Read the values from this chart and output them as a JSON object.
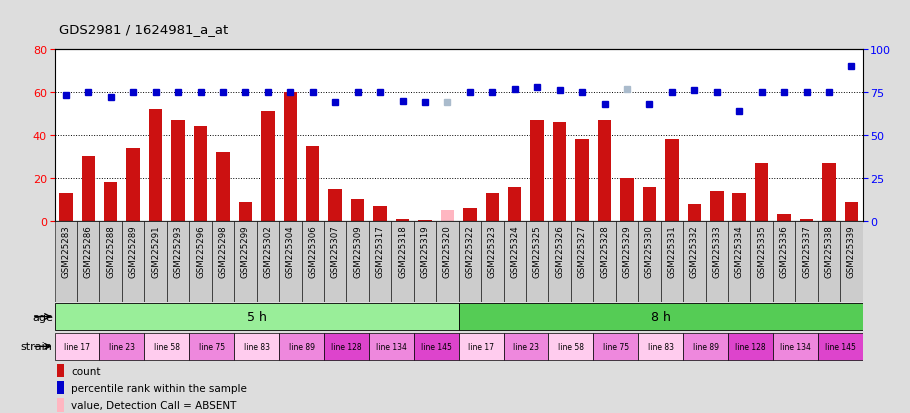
{
  "title": "GDS2981 / 1624981_a_at",
  "categories": [
    "GSM225283",
    "GSM225286",
    "GSM225288",
    "GSM225289",
    "GSM225291",
    "GSM225293",
    "GSM225296",
    "GSM225298",
    "GSM225299",
    "GSM225302",
    "GSM225304",
    "GSM225306",
    "GSM225307",
    "GSM225309",
    "GSM225317",
    "GSM225318",
    "GSM225319",
    "GSM225320",
    "GSM225322",
    "GSM225323",
    "GSM225324",
    "GSM225325",
    "GSM225326",
    "GSM225327",
    "GSM225328",
    "GSM225329",
    "GSM225330",
    "GSM225331",
    "GSM225332",
    "GSM225333",
    "GSM225334",
    "GSM225335",
    "GSM225336",
    "GSM225337",
    "GSM225338",
    "GSM225339"
  ],
  "bar_values": [
    13,
    30,
    18,
    34,
    52,
    47,
    44,
    32,
    9,
    51,
    60,
    35,
    15,
    10,
    7,
    1,
    0.5,
    5,
    6,
    13,
    16,
    47,
    46,
    38,
    47,
    20,
    16,
    38,
    8,
    14,
    13,
    27,
    3,
    1,
    27,
    9
  ],
  "bar_absent_flags": [
    0,
    0,
    0,
    0,
    0,
    0,
    0,
    0,
    0,
    0,
    0,
    0,
    0,
    0,
    0,
    0,
    0,
    1,
    0,
    0,
    0,
    0,
    0,
    0,
    0,
    0,
    0,
    0,
    0,
    0,
    0,
    0,
    0,
    0,
    0,
    0
  ],
  "percentile_values": [
    73,
    75,
    72,
    75,
    75,
    75,
    75,
    75,
    75,
    75,
    75,
    75,
    69,
    75,
    75,
    70,
    69,
    69,
    75,
    75,
    77,
    78,
    76,
    75,
    68,
    77,
    68,
    75,
    76,
    75,
    64,
    75,
    75,
    75,
    75,
    90
  ],
  "percentile_absent_flags": [
    0,
    0,
    0,
    0,
    0,
    0,
    0,
    0,
    0,
    0,
    0,
    0,
    0,
    0,
    0,
    0,
    0,
    1,
    0,
    0,
    0,
    0,
    0,
    0,
    0,
    1,
    0,
    0,
    0,
    0,
    0,
    0,
    0,
    0,
    0,
    0
  ],
  "age_groups": [
    {
      "label": "5 h",
      "start": 0,
      "end": 18,
      "color": "#99EE99"
    },
    {
      "label": "8 h",
      "start": 18,
      "end": 36,
      "color": "#55CC55"
    }
  ],
  "strain_groups": [
    {
      "label": "line 17",
      "start": 0,
      "end": 2,
      "color": "#FFCCEE"
    },
    {
      "label": "line 23",
      "start": 2,
      "end": 4,
      "color": "#EE88DD"
    },
    {
      "label": "line 58",
      "start": 4,
      "end": 6,
      "color": "#FFCCEE"
    },
    {
      "label": "line 75",
      "start": 6,
      "end": 8,
      "color": "#EE88DD"
    },
    {
      "label": "line 83",
      "start": 8,
      "end": 10,
      "color": "#FFCCEE"
    },
    {
      "label": "line 89",
      "start": 10,
      "end": 12,
      "color": "#EE88DD"
    },
    {
      "label": "line 128",
      "start": 12,
      "end": 14,
      "color": "#DD44CC"
    },
    {
      "label": "line 134",
      "start": 14,
      "end": 16,
      "color": "#EE88DD"
    },
    {
      "label": "line 145",
      "start": 16,
      "end": 18,
      "color": "#DD44CC"
    },
    {
      "label": "line 17",
      "start": 18,
      "end": 20,
      "color": "#FFCCEE"
    },
    {
      "label": "line 23",
      "start": 20,
      "end": 22,
      "color": "#EE88DD"
    },
    {
      "label": "line 58",
      "start": 22,
      "end": 24,
      "color": "#FFCCEE"
    },
    {
      "label": "line 75",
      "start": 24,
      "end": 26,
      "color": "#EE88DD"
    },
    {
      "label": "line 83",
      "start": 26,
      "end": 28,
      "color": "#FFCCEE"
    },
    {
      "label": "line 89",
      "start": 28,
      "end": 30,
      "color": "#EE88DD"
    },
    {
      "label": "line 128",
      "start": 30,
      "end": 32,
      "color": "#DD44CC"
    },
    {
      "label": "line 134",
      "start": 32,
      "end": 34,
      "color": "#EE88DD"
    },
    {
      "label": "line 145",
      "start": 34,
      "end": 36,
      "color": "#DD44CC"
    }
  ],
  "ylim_left": [
    0,
    80
  ],
  "ylim_right": [
    0,
    100
  ],
  "yticks_left": [
    0,
    20,
    40,
    60,
    80
  ],
  "yticks_right": [
    0,
    25,
    50,
    75,
    100
  ],
  "grid_lines": [
    20,
    40,
    60
  ],
  "bar_color": "#CC1111",
  "bar_absent_color": "#FFB6C1",
  "dot_color": "#0000CC",
  "dot_absent_color": "#AABBCC",
  "bg_color": "#DDDDDD",
  "plot_bg": "#FFFFFF",
  "xtick_cell_color": "#CCCCCC"
}
